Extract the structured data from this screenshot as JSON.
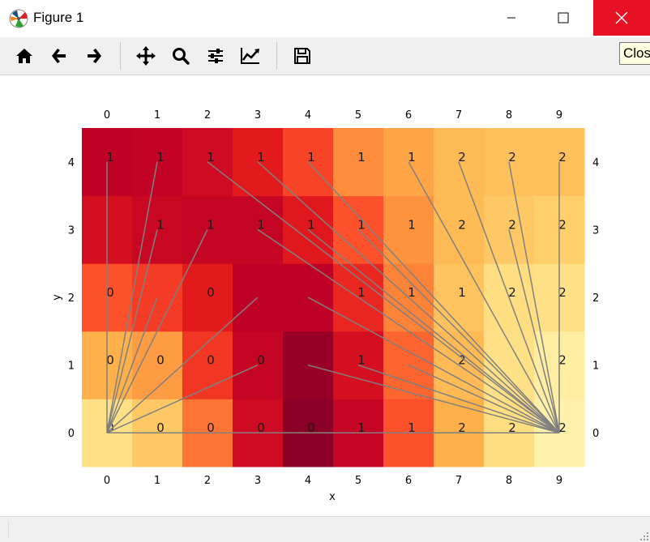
{
  "window": {
    "title": "Figure 1",
    "tooltip": "Close"
  },
  "toolbar": {
    "buttons": [
      "home-icon",
      "back-arrow-icon",
      "forward-arrow-icon",
      "pan-icon",
      "zoom-icon",
      "subplots-icon",
      "edit-axes-icon",
      "save-icon"
    ]
  },
  "chart_data": {
    "type": "heatmap",
    "colormap": "YlOrRd",
    "xlabel": "x",
    "ylabel": "y",
    "x_ticks": [
      0,
      1,
      2,
      3,
      4,
      5,
      6,
      7,
      8,
      9
    ],
    "y_ticks": [
      0,
      1,
      2,
      3,
      4
    ],
    "xlim": [
      -0.5,
      9.5
    ],
    "ylim": [
      -0.5,
      4.5
    ],
    "tick_labels_on_all_sides": true,
    "intensity_rows_y0_to_y4": [
      [
        0.2,
        0.3,
        0.55,
        0.82,
        0.98,
        0.85,
        0.62,
        0.38,
        0.22,
        0.1
      ],
      [
        0.38,
        0.45,
        0.68,
        0.85,
        0.95,
        0.8,
        0.58,
        0.35,
        0.2,
        0.12
      ],
      [
        0.62,
        0.67,
        0.75,
        0.87,
        0.87,
        0.72,
        0.52,
        0.32,
        0.22,
        0.2
      ],
      [
        0.8,
        0.84,
        0.85,
        0.85,
        0.76,
        0.62,
        0.48,
        0.35,
        0.3,
        0.28
      ],
      [
        0.87,
        0.86,
        0.82,
        0.75,
        0.65,
        0.5,
        0.42,
        0.35,
        0.33,
        0.33
      ]
    ],
    "cell_labels_rows_y0_to_y4": [
      [
        "0",
        "0",
        "0",
        "0",
        "0",
        "1",
        "1",
        "2",
        "2",
        "2"
      ],
      [
        "0",
        "0",
        "0",
        "0",
        "",
        "1",
        "",
        "2",
        "",
        "2"
      ],
      [
        "0",
        "",
        "0",
        "",
        "",
        "1",
        "1",
        "1",
        "2",
        "2"
      ],
      [
        "",
        "1",
        "1",
        "1",
        "1",
        "1",
        "1",
        "2",
        "2",
        "2"
      ],
      [
        "1",
        "1",
        "1",
        "1",
        "1",
        "1",
        "1",
        "2",
        "2",
        "2"
      ]
    ],
    "line_color": "#808080",
    "line_segments": [
      [
        [
          0,
          0
        ],
        [
          9,
          0
        ]
      ],
      [
        [
          0,
          0
        ],
        [
          0,
          4
        ]
      ],
      [
        [
          0,
          0
        ],
        [
          1,
          4
        ]
      ],
      [
        [
          0,
          0
        ],
        [
          1,
          3
        ]
      ],
      [
        [
          0,
          0
        ],
        [
          2,
          3
        ]
      ],
      [
        [
          0,
          0
        ],
        [
          1,
          2
        ]
      ],
      [
        [
          0,
          0
        ],
        [
          3,
          2
        ]
      ],
      [
        [
          0,
          0
        ],
        [
          3,
          1
        ]
      ],
      [
        [
          9,
          0
        ],
        [
          2,
          4
        ]
      ],
      [
        [
          9,
          0
        ],
        [
          3,
          4
        ]
      ],
      [
        [
          9,
          0
        ],
        [
          4,
          4
        ]
      ],
      [
        [
          9,
          0
        ],
        [
          6,
          4
        ]
      ],
      [
        [
          9,
          0
        ],
        [
          7,
          4
        ]
      ],
      [
        [
          9,
          0
        ],
        [
          8,
          4
        ]
      ],
      [
        [
          9,
          0
        ],
        [
          9,
          4
        ]
      ],
      [
        [
          9,
          0
        ],
        [
          3,
          3
        ]
      ],
      [
        [
          9,
          0
        ],
        [
          4,
          3
        ]
      ],
      [
        [
          9,
          0
        ],
        [
          5,
          3
        ]
      ],
      [
        [
          9,
          0
        ],
        [
          8,
          3
        ]
      ],
      [
        [
          9,
          0
        ],
        [
          4,
          2
        ]
      ],
      [
        [
          9,
          0
        ],
        [
          4,
          1
        ]
      ],
      [
        [
          9,
          0
        ],
        [
          5,
          1
        ]
      ],
      [
        [
          9,
          0
        ],
        [
          6,
          1
        ]
      ]
    ]
  }
}
